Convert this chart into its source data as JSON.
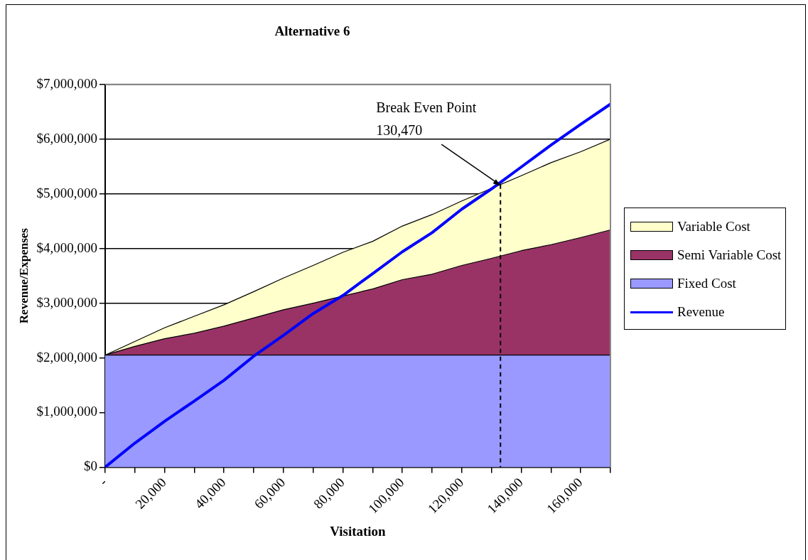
{
  "chart_data": {
    "type": "area",
    "title": "Alternative 6",
    "xlabel": "Visitation",
    "ylabel": "Revenue/Expenses",
    "stacked": true,
    "grid": "y",
    "legend": "right",
    "marker": "none",
    "x": [
      0,
      10000,
      20000,
      30000,
      40000,
      50000,
      60000,
      70000,
      80000,
      90000,
      100000,
      110000,
      120000,
      130000,
      140000,
      150000,
      160000,
      170000
    ],
    "series": [
      {
        "name": "Fixed Cost",
        "color": "#9999ff",
        "values": [
          2050000,
          2050000,
          2050000,
          2050000,
          2050000,
          2050000,
          2050000,
          2050000,
          2050000,
          2050000,
          2050000,
          2050000,
          2050000,
          2050000,
          2050000,
          2050000,
          2050000,
          2050000
        ]
      },
      {
        "name": "Semi Variable Cost",
        "color": "#993366",
        "values": [
          0,
          160000,
          300000,
          400000,
          530000,
          680000,
          830000,
          950000,
          1080000,
          1210000,
          1380000,
          1480000,
          1640000,
          1770000,
          1910000,
          2020000,
          2150000,
          2290000
        ]
      },
      {
        "name": "Variable Cost",
        "color": "#ffffcc",
        "values": [
          0,
          90000,
          200000,
          310000,
          390000,
          480000,
          580000,
          690000,
          800000,
          870000,
          980000,
          1090000,
          1180000,
          1280000,
          1370000,
          1500000,
          1570000,
          1660000
        ]
      },
      {
        "name": "Revenue",
        "type": "line",
        "color": "#0000ff",
        "line_style": "solid",
        "values": [
          0,
          440000,
          840000,
          1210000,
          1590000,
          2030000,
          2410000,
          2810000,
          3140000,
          3540000,
          3940000,
          4290000,
          4720000,
          5090000,
          5490000,
          5890000,
          6270000,
          6640000
        ]
      }
    ],
    "xlim": [
      0,
      170000
    ],
    "xticks": [
      {
        "value": 0,
        "label": "-"
      },
      {
        "value": 10000,
        "label": null
      },
      {
        "value": 20000,
        "label": "20,000"
      },
      {
        "value": 30000,
        "label": null
      },
      {
        "value": 40000,
        "label": "40,000"
      },
      {
        "value": 50000,
        "label": null
      },
      {
        "value": 60000,
        "label": "60,000"
      },
      {
        "value": 70000,
        "label": null
      },
      {
        "value": 80000,
        "label": "80,000"
      },
      {
        "value": 90000,
        "label": null
      },
      {
        "value": 100000,
        "label": "100,000"
      },
      {
        "value": 110000,
        "label": null
      },
      {
        "value": 120000,
        "label": "120,000"
      },
      {
        "value": 130000,
        "label": null
      },
      {
        "value": 140000,
        "label": "140,000"
      },
      {
        "value": 150000,
        "label": null
      },
      {
        "value": 160000,
        "label": "160,000"
      },
      {
        "value": 170000,
        "label": null
      }
    ],
    "ylim": [
      0,
      7000000
    ],
    "yticks": [
      {
        "value": 0,
        "label": "$0"
      },
      {
        "value": 1000000,
        "label": "$1,000,000"
      },
      {
        "value": 2000000,
        "label": "$2,000,000"
      },
      {
        "value": 3000000,
        "label": "$3,000,000"
      },
      {
        "value": 4000000,
        "label": "$4,000,000"
      },
      {
        "value": 5000000,
        "label": "$5,000,000"
      },
      {
        "value": 6000000,
        "label": "$6,000,000"
      },
      {
        "value": 7000000,
        "label": "$7,000,000"
      }
    ],
    "ref_lines": [
      {
        "axis": "x",
        "value": 133000,
        "color": "#000000",
        "line_style": "dashed"
      }
    ],
    "annotations": [
      {
        "text": "Break Even Point\n130,470",
        "x": 133000,
        "y": 5150000
      }
    ]
  }
}
